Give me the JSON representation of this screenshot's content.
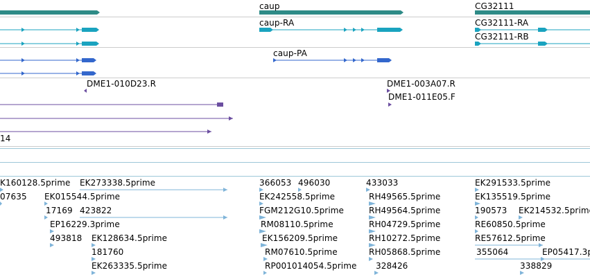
{
  "colors": {
    "background": "#ffffff",
    "divider": "#cccccc",
    "cyan_divider": "#9dc7d8",
    "gene_bar": "#2e8b87",
    "transcript_cyan": "#1aa3bf",
    "transcript_blue": "#3367cc",
    "est_purple": "#6b4ea0",
    "cdna_light_blue": "#7fb4d9"
  },
  "tracks": {
    "genes": {
      "features": [
        {
          "name": "",
          "icon": "gene-bar"
        },
        {
          "name": "caup",
          "icon": "gene-bar"
        },
        {
          "name": "CG32111",
          "icon": "gene-bar"
        }
      ]
    },
    "transcripts": {
      "features": [
        {
          "name": "",
          "icon": "transcript-arrow"
        },
        {
          "name": "caup-RA",
          "icon": "transcript-arrow"
        },
        {
          "name": "CG32111-RA",
          "icon": "transcript-arrow"
        },
        {
          "name": "CG32111-RB",
          "icon": "transcript-arrow"
        }
      ]
    },
    "proteins": {
      "features": [
        {
          "name": "caup-PA",
          "icon": "transcript-arrow"
        }
      ]
    },
    "clones": {
      "labels": [
        "DME1-010D23.R",
        "DME1-003A07.R",
        "DME1-011E05.F",
        "14"
      ]
    },
    "cdna": {
      "labels": [
        "K160128.5prime",
        "EK273338.5prime",
        "366053",
        "496030",
        "433033",
        "EK291533.5prime",
        "07635",
        "EK015544.5prime",
        "EK242558.5prime",
        "RH49565.5prime",
        "EK135519.5prime",
        "17169",
        "423822",
        "FGM212G10.5prime",
        "RH49564.5prime",
        "190573",
        "EK214532.5prime",
        "EP16229.3prime",
        "RM08110.5prime",
        "RH04729.5prime",
        "RE60850.5prime",
        "493818",
        "EK128634.5prime",
        "EK156209.5prime",
        "RH10272.5prime",
        "RE57612.5prime",
        "181760",
        "RM07610.5prime",
        "RH05868.5prime",
        "355064",
        "EP05417.3p",
        "EK263335.5prime",
        "RP001014054.5prime",
        "328426",
        "338829"
      ]
    }
  }
}
